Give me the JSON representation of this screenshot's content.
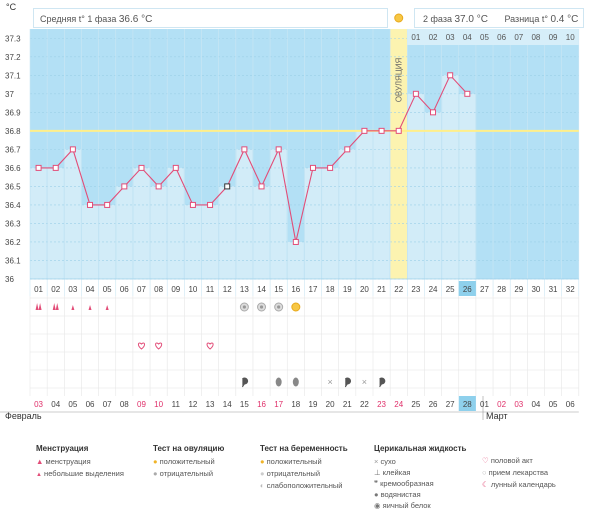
{
  "chart_data": {
    "type": "line",
    "y_unit": "°C",
    "ylim": [
      36.0,
      37.35
    ],
    "y_ticks": [
      "37.3",
      "37.2",
      "37.1",
      "37",
      "36.9",
      "36.8",
      "36.7",
      "36.6",
      "36.5",
      "36.4",
      "36.3",
      "36.2",
      "36.1",
      "36"
    ],
    "cycle_days": [
      "01",
      "02",
      "03",
      "04",
      "05",
      "06",
      "07",
      "08",
      "09",
      "10",
      "11",
      "12",
      "13",
      "14",
      "15",
      "16",
      "17",
      "18",
      "19",
      "20",
      "21",
      "22",
      "23",
      "24",
      "25",
      "26",
      "27",
      "28",
      "29",
      "30",
      "31",
      "32"
    ],
    "temperatures": [
      36.6,
      36.6,
      36.7,
      36.4,
      36.4,
      36.5,
      36.6,
      36.5,
      36.6,
      36.4,
      36.4,
      36.5,
      36.7,
      36.5,
      36.7,
      36.2,
      36.6,
      36.6,
      36.7,
      36.8,
      36.8,
      36.8,
      37.0,
      36.9,
      37.1,
      37.0
    ],
    "current_day_index": 25,
    "ovulation_day_index": 21,
    "coverline": 36.8,
    "ovulation_label": "ОВУЛЯЦИЯ",
    "phase1": {
      "label": "Средняя t° 1 фаза",
      "value": "36.6 °C"
    },
    "phase2": {
      "label": "2 фаза",
      "value": "37.0 °C"
    },
    "difference": {
      "label": "Разница t°",
      "value": "0.4 °C"
    },
    "phase2_days": [
      "01",
      "02",
      "03",
      "04",
      "05",
      "06",
      "07",
      "08",
      "09",
      "10"
    ]
  },
  "markers": {
    "menstruation": [
      {
        "day": 0,
        "kind": "heavy"
      },
      {
        "day": 1,
        "kind": "heavy"
      },
      {
        "day": 2,
        "kind": "light"
      },
      {
        "day": 3,
        "kind": "light"
      },
      {
        "day": 4,
        "kind": "light"
      }
    ],
    "ovulation_tests": [
      {
        "day": 12,
        "kind": "negative"
      },
      {
        "day": 13,
        "kind": "negative"
      },
      {
        "day": 14,
        "kind": "negative"
      },
      {
        "day": 15,
        "kind": "positive"
      }
    ],
    "intercourse": [
      6,
      7,
      10
    ],
    "mucus": [
      {
        "day": 12,
        "kind": "creamy"
      },
      {
        "day": 14,
        "kind": "eggwhite"
      },
      {
        "day": 15,
        "kind": "eggwhite"
      },
      {
        "day": 17,
        "kind": "dry"
      },
      {
        "day": 18,
        "kind": "creamy"
      },
      {
        "day": 19,
        "kind": "dry"
      },
      {
        "day": 20,
        "kind": "creamy"
      }
    ]
  },
  "calendar": {
    "month1": "Февраль",
    "month2": "Март",
    "dates": [
      "03",
      "04",
      "05",
      "06",
      "07",
      "08",
      "09",
      "10",
      "11",
      "12",
      "13",
      "14",
      "15",
      "16",
      "17",
      "18",
      "19",
      "20",
      "21",
      "22",
      "23",
      "24",
      "25",
      "26",
      "27",
      "28",
      "01",
      "02",
      "03",
      "04",
      "05",
      "06"
    ],
    "red_dates": [
      0,
      6,
      7,
      13,
      14,
      20,
      21,
      27,
      28
    ],
    "current_date_index": 25
  },
  "legend": {
    "menstruation": {
      "title": "Менструация",
      "items": [
        "менструация",
        "небольшие выделения"
      ]
    },
    "ovulation_test": {
      "title": "Тест на овуляцию",
      "items": [
        "положительный",
        "отрицательный"
      ]
    },
    "pregnancy_test": {
      "title": "Тест на беременность",
      "items": [
        "положительный",
        "отрицательный",
        "слабоположительный"
      ]
    },
    "cervical_fluid": {
      "title": "Церикальная жидкость",
      "items": [
        "сухо",
        "клейкая",
        "кремообразная",
        "водянистая",
        "яичный белок"
      ]
    },
    "other": {
      "items": [
        "половой акт",
        "прием лекарства",
        "лунный календарь"
      ]
    }
  },
  "colors": {
    "background_upper": "#b3e0f5",
    "bar_fill": "#d2ecf8",
    "line": "#e24d78",
    "coverline": "#ffef8a",
    "ovulation_band": "#fcf3b0",
    "highlight": "#8ed0ec",
    "weekend_red": "#e0306a",
    "grid": "#9ccfe8"
  }
}
